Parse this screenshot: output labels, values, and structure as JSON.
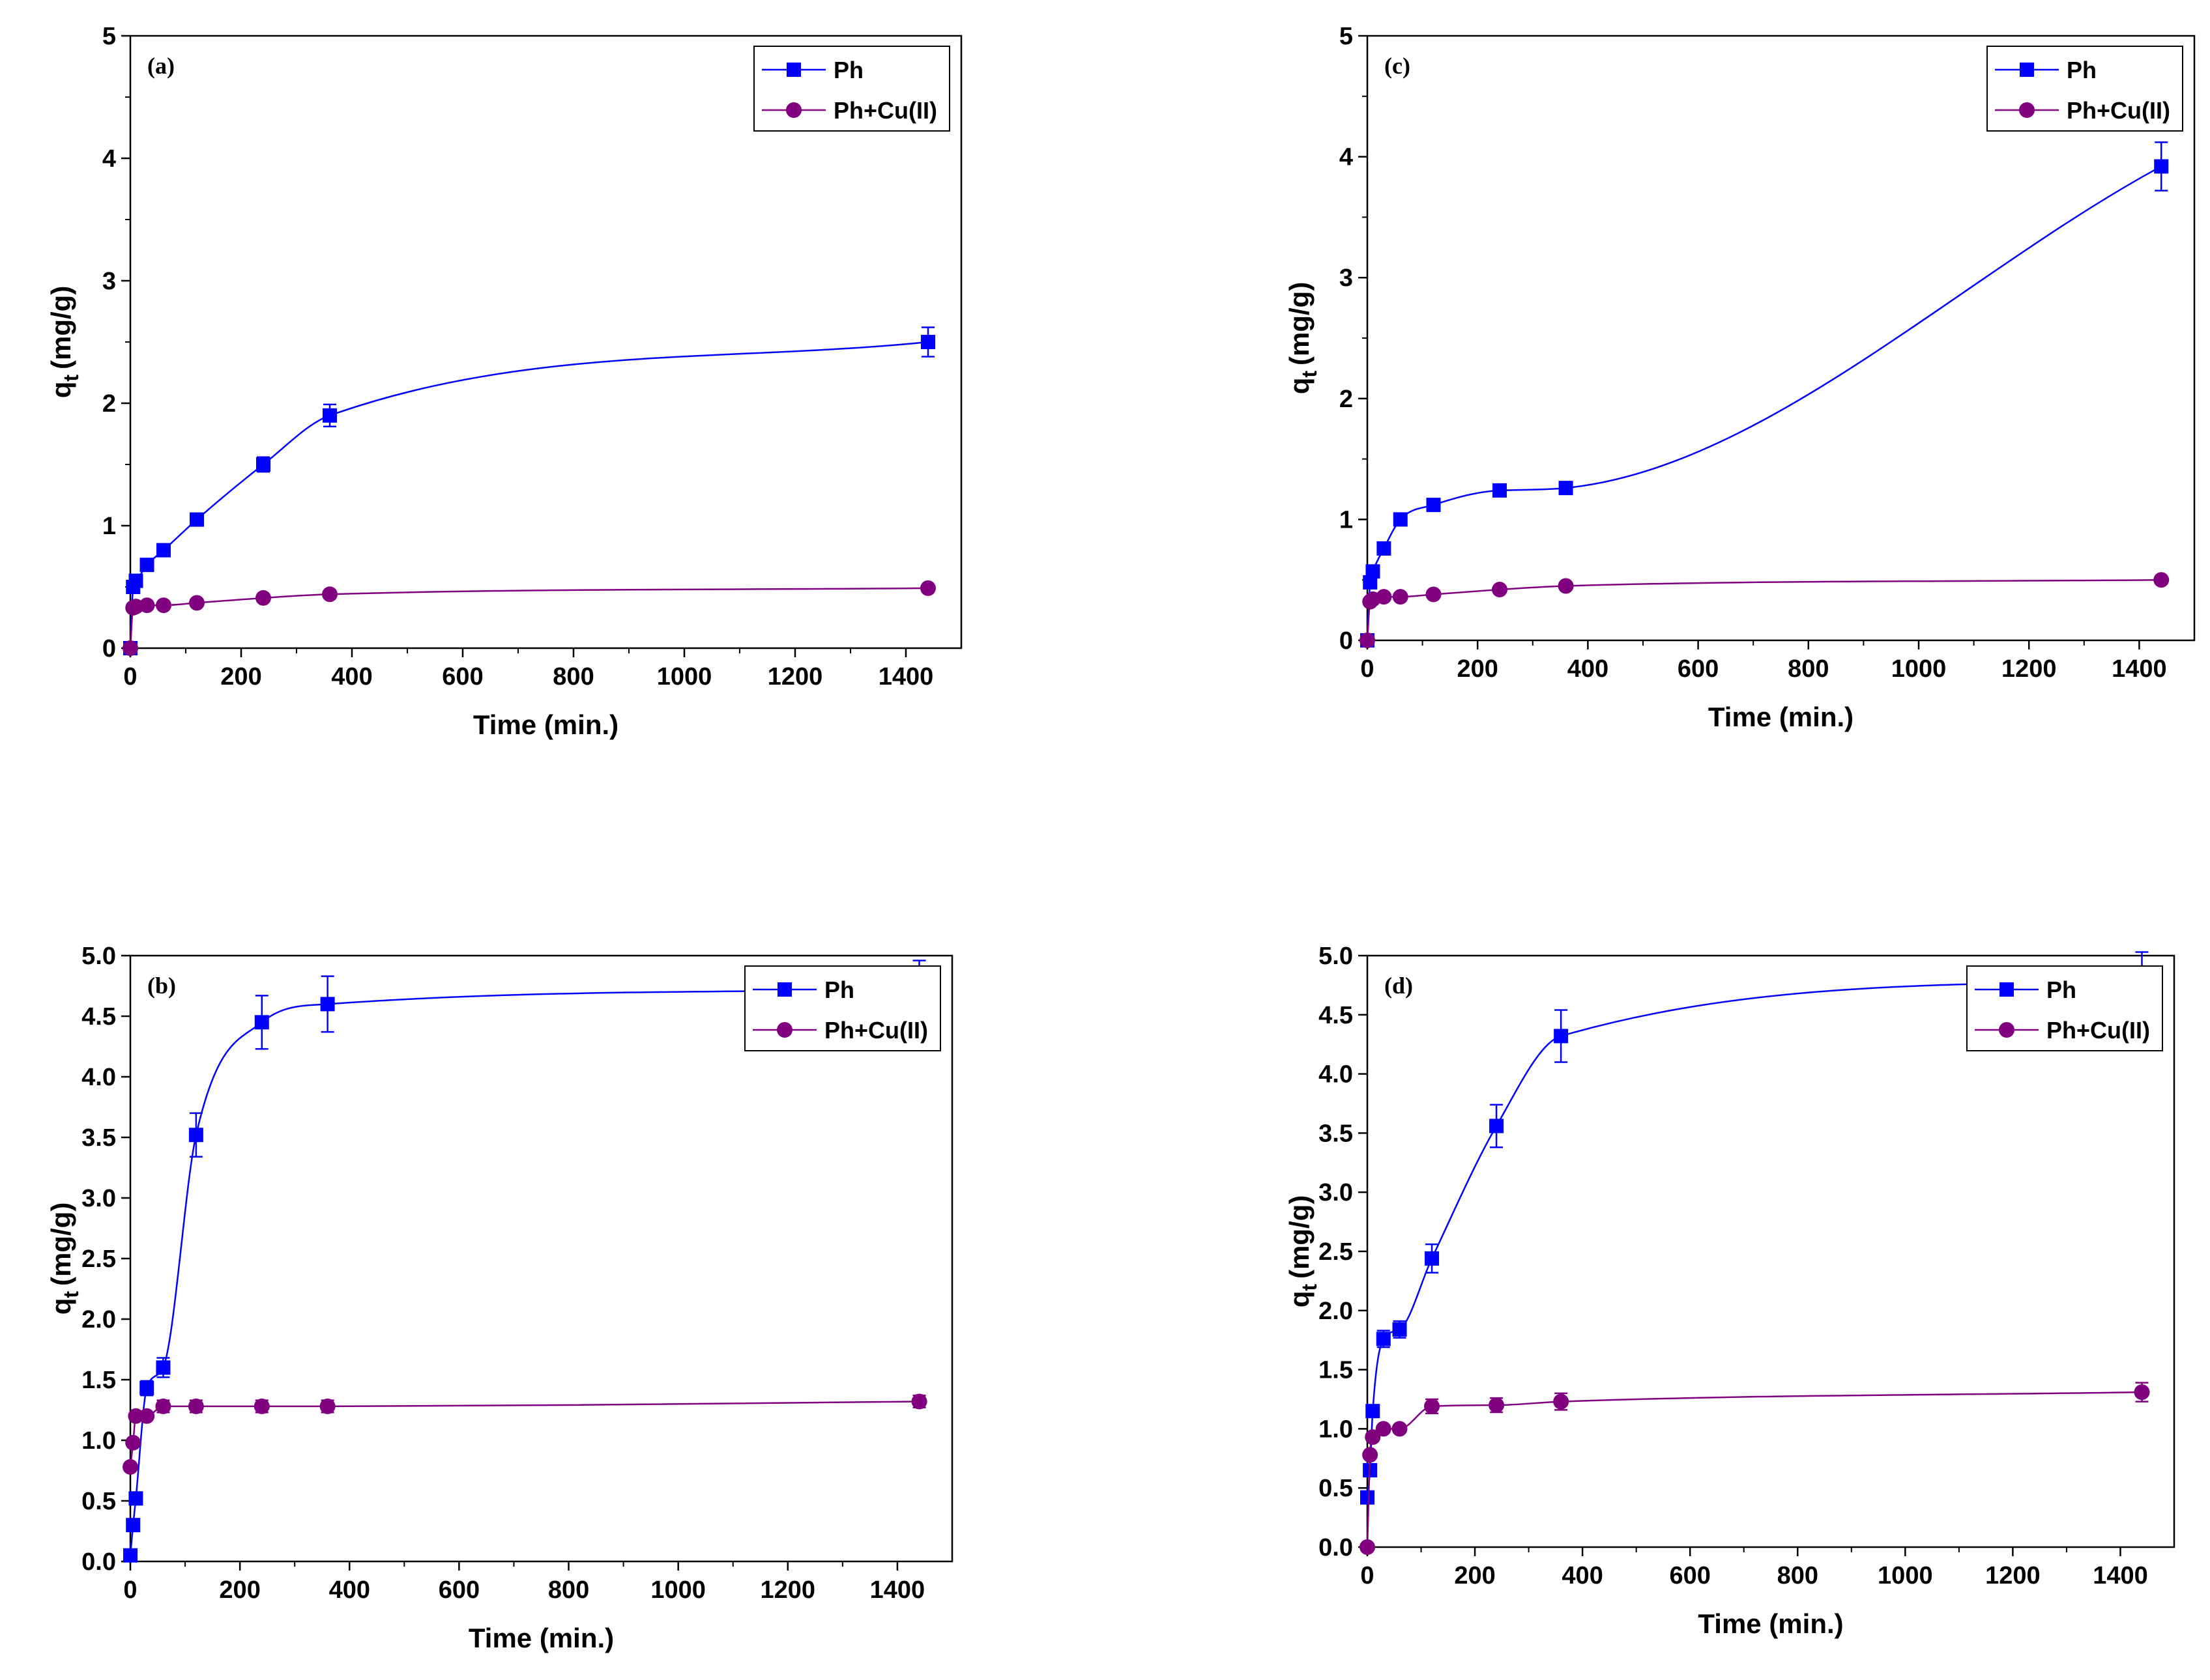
{
  "chart_data": [
    {
      "type": "line",
      "panel_label": "(a)",
      "xlabel": "Time (min.)",
      "ylabel_main": "q",
      "ylabel_sub": "t",
      "ylabel_unit": "(mg/g)",
      "xlim": [
        0,
        1500
      ],
      "ylim": [
        0,
        5
      ],
      "xticks": [
        0,
        200,
        400,
        600,
        800,
        1000,
        1200,
        1400
      ],
      "yticks": [
        0,
        1,
        2,
        3,
        4,
        5
      ],
      "ytick_labels": [
        "0",
        "1",
        "2",
        "3",
        "4",
        "5"
      ],
      "grid": false,
      "legend_position": "top-right",
      "series": [
        {
          "name": "Ph",
          "color": "#0000ff",
          "marker": "square",
          "x": [
            0,
            5,
            10,
            30,
            60,
            120,
            240,
            360,
            1440
          ],
          "y": [
            0.0,
            0.5,
            0.55,
            0.68,
            0.8,
            1.05,
            1.5,
            1.9,
            2.5
          ],
          "err": [
            0,
            0,
            0,
            0,
            0,
            0,
            0.06,
            0.09,
            0.12
          ]
        },
        {
          "name": "Ph+Cu(II)",
          "color": "#800080",
          "marker": "circle",
          "x": [
            0,
            5,
            10,
            30,
            60,
            120,
            240,
            360,
            1440
          ],
          "y": [
            0.0,
            0.33,
            0.34,
            0.35,
            0.35,
            0.37,
            0.41,
            0.44,
            0.49
          ],
          "err": [
            0,
            0,
            0,
            0,
            0,
            0,
            0,
            0,
            0
          ]
        }
      ]
    },
    {
      "type": "line",
      "panel_label": "(c)",
      "xlabel": "Time (min.)",
      "ylabel_main": "q",
      "ylabel_sub": "t",
      "ylabel_unit": "(mg/g)",
      "xlim": [
        0,
        1500
      ],
      "ylim": [
        0,
        5
      ],
      "xticks": [
        0,
        200,
        400,
        600,
        800,
        1000,
        1200,
        1400
      ],
      "yticks": [
        0,
        1,
        2,
        3,
        4,
        5
      ],
      "ytick_labels": [
        "0",
        "1",
        "2",
        "3",
        "4",
        "5"
      ],
      "grid": false,
      "legend_position": "top-right",
      "series": [
        {
          "name": "Ph",
          "color": "#0000ff",
          "marker": "square",
          "x": [
            0,
            5,
            10,
            30,
            60,
            120,
            240,
            360,
            1440
          ],
          "y": [
            0.0,
            0.48,
            0.57,
            0.76,
            1.0,
            1.12,
            1.24,
            1.26,
            3.92
          ],
          "err": [
            0,
            0,
            0,
            0,
            0,
            0,
            0,
            0,
            0.2
          ]
        },
        {
          "name": "Ph+Cu(II)",
          "color": "#800080",
          "marker": "circle",
          "x": [
            0,
            5,
            10,
            30,
            60,
            120,
            240,
            360,
            1440
          ],
          "y": [
            0.0,
            0.32,
            0.34,
            0.36,
            0.36,
            0.38,
            0.42,
            0.45,
            0.5
          ],
          "err": [
            0,
            0,
            0,
            0,
            0,
            0,
            0,
            0,
            0
          ]
        }
      ]
    },
    {
      "type": "line",
      "panel_label": "(b)",
      "xlabel": "Time (min.)",
      "ylabel_main": "q",
      "ylabel_sub": "t",
      "ylabel_unit": "(mg/g)",
      "xlim": [
        0,
        1500
      ],
      "ylim": [
        0,
        5
      ],
      "xticks": [
        0,
        200,
        400,
        600,
        800,
        1000,
        1200,
        1400
      ],
      "yticks": [
        0,
        0.5,
        1,
        1.5,
        2,
        2.5,
        3,
        3.5,
        4,
        4.5,
        5
      ],
      "ytick_labels": [
        "0.0",
        "0.5",
        "1.0",
        "1.5",
        "2.0",
        "2.5",
        "3.0",
        "3.5",
        "4.0",
        "4.5",
        "5.0"
      ],
      "grid": false,
      "legend_position": "top-right",
      "series": [
        {
          "name": "Ph",
          "color": "#0000ff",
          "marker": "square",
          "x": [
            0,
            5,
            10,
            30,
            60,
            120,
            240,
            360,
            1440
          ],
          "y": [
            0.05,
            0.3,
            0.52,
            1.43,
            1.6,
            3.52,
            4.45,
            4.6,
            4.72
          ],
          "err": [
            0,
            0,
            0,
            0.06,
            0.08,
            0.18,
            0.22,
            0.23,
            0.24
          ]
        },
        {
          "name": "Ph+Cu(II)",
          "color": "#800080",
          "marker": "circle",
          "x": [
            0,
            5,
            10,
            30,
            60,
            120,
            240,
            360,
            1440
          ],
          "y": [
            0.78,
            0.98,
            1.2,
            1.2,
            1.28,
            1.28,
            1.28,
            1.28,
            1.32
          ],
          "err": [
            0,
            0,
            0,
            0,
            0.05,
            0.05,
            0.05,
            0.05,
            0.05
          ]
        }
      ]
    },
    {
      "type": "line",
      "panel_label": "(d)",
      "xlabel": "Time (min.)",
      "ylabel_main": "q",
      "ylabel_sub": "t",
      "ylabel_unit": "(mg/g)",
      "xlim": [
        0,
        1500
      ],
      "ylim": [
        0,
        5
      ],
      "xticks": [
        0,
        200,
        400,
        600,
        800,
        1000,
        1200,
        1400
      ],
      "yticks": [
        0,
        0.5,
        1,
        1.5,
        2,
        2.5,
        3,
        3.5,
        4,
        4.5,
        5
      ],
      "ytick_labels": [
        "0.0",
        "0.5",
        "1.0",
        "1.5",
        "2.0",
        "2.5",
        "3.0",
        "3.5",
        "4.0",
        "4.5",
        "5.0"
      ],
      "grid": false,
      "legend_position": "top-right",
      "series": [
        {
          "name": "Ph",
          "color": "#0000ff",
          "marker": "square",
          "x": [
            0,
            5,
            10,
            30,
            60,
            120,
            240,
            360,
            1440
          ],
          "y": [
            0.42,
            0.65,
            1.15,
            1.76,
            1.84,
            2.44,
            3.56,
            4.32,
            4.8
          ],
          "err": [
            0,
            0,
            0,
            0.07,
            0.07,
            0.12,
            0.18,
            0.22,
            0.23
          ]
        },
        {
          "name": "Ph+Cu(II)",
          "color": "#800080",
          "marker": "circle",
          "x": [
            0,
            5,
            10,
            30,
            60,
            120,
            240,
            360,
            1440
          ],
          "y": [
            0.0,
            0.78,
            0.93,
            1.0,
            1.0,
            1.19,
            1.2,
            1.23,
            1.31
          ],
          "err": [
            0,
            0,
            0,
            0,
            0,
            0.06,
            0.06,
            0.07,
            0.08
          ]
        }
      ]
    }
  ]
}
